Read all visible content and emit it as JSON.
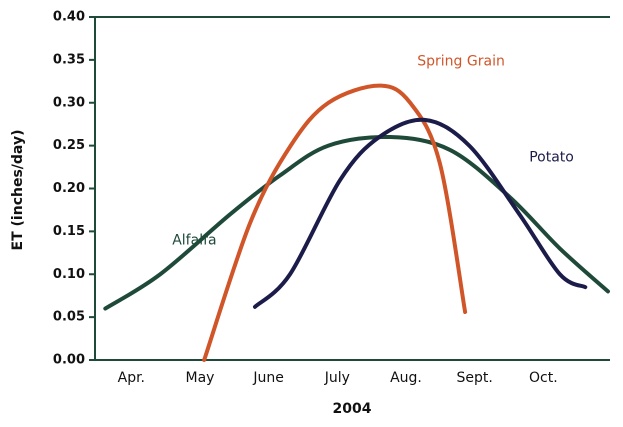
{
  "chart_data": {
    "type": "line",
    "x_label": "2004",
    "y_label": "ET (inches/day)",
    "xlim": [
      3.5,
      11
    ],
    "ylim": [
      0,
      0.4
    ],
    "xticks": [
      {
        "value": 4,
        "label": "Apr."
      },
      {
        "value": 5,
        "label": "May"
      },
      {
        "value": 6,
        "label": "June"
      },
      {
        "value": 7,
        "label": "July"
      },
      {
        "value": 8,
        "label": "Aug."
      },
      {
        "value": 9,
        "label": "Sept."
      },
      {
        "value": 10,
        "label": "Oct."
      }
    ],
    "yticks": [
      {
        "value": 0,
        "label": "0.00"
      },
      {
        "value": 0.05,
        "label": "0.05"
      },
      {
        "value": 0.1,
        "label": "0.10"
      },
      {
        "value": 0.15,
        "label": "0.15"
      },
      {
        "value": 0.2,
        "label": "0.20"
      },
      {
        "value": 0.25,
        "label": "0.25"
      },
      {
        "value": 0.3,
        "label": "0.30"
      },
      {
        "value": 0.35,
        "label": "0.35"
      },
      {
        "value": 0.4,
        "label": "0.40"
      }
    ],
    "series": [
      {
        "name": "Alfalfa",
        "color": "#1f4a3a",
        "x": [
          3.65,
          4.45,
          5.47,
          6.19,
          6.9,
          7.8,
          8.67,
          9.54,
          10.27,
          10.97
        ],
        "values": [
          0.06,
          0.1,
          0.17,
          0.215,
          0.25,
          0.26,
          0.245,
          0.19,
          0.13,
          0.08
        ]
      },
      {
        "name": "Spring Grain",
        "color": "#d0562a",
        "x": [
          5.09,
          5.76,
          6.35,
          6.9,
          7.64,
          8.09,
          8.52,
          8.89
        ],
        "values": [
          0,
          0.16,
          0.25,
          0.3,
          0.32,
          0.3,
          0.23,
          0.056
        ]
      },
      {
        "name": "Potato",
        "color": "#1c1c4a",
        "x": [
          5.83,
          6.34,
          7.07,
          7.64,
          8.3,
          8.95,
          9.68,
          10.27,
          10.64
        ],
        "values": [
          0.062,
          0.1,
          0.21,
          0.26,
          0.28,
          0.25,
          0.17,
          0.1,
          0.085
        ]
      }
    ]
  }
}
